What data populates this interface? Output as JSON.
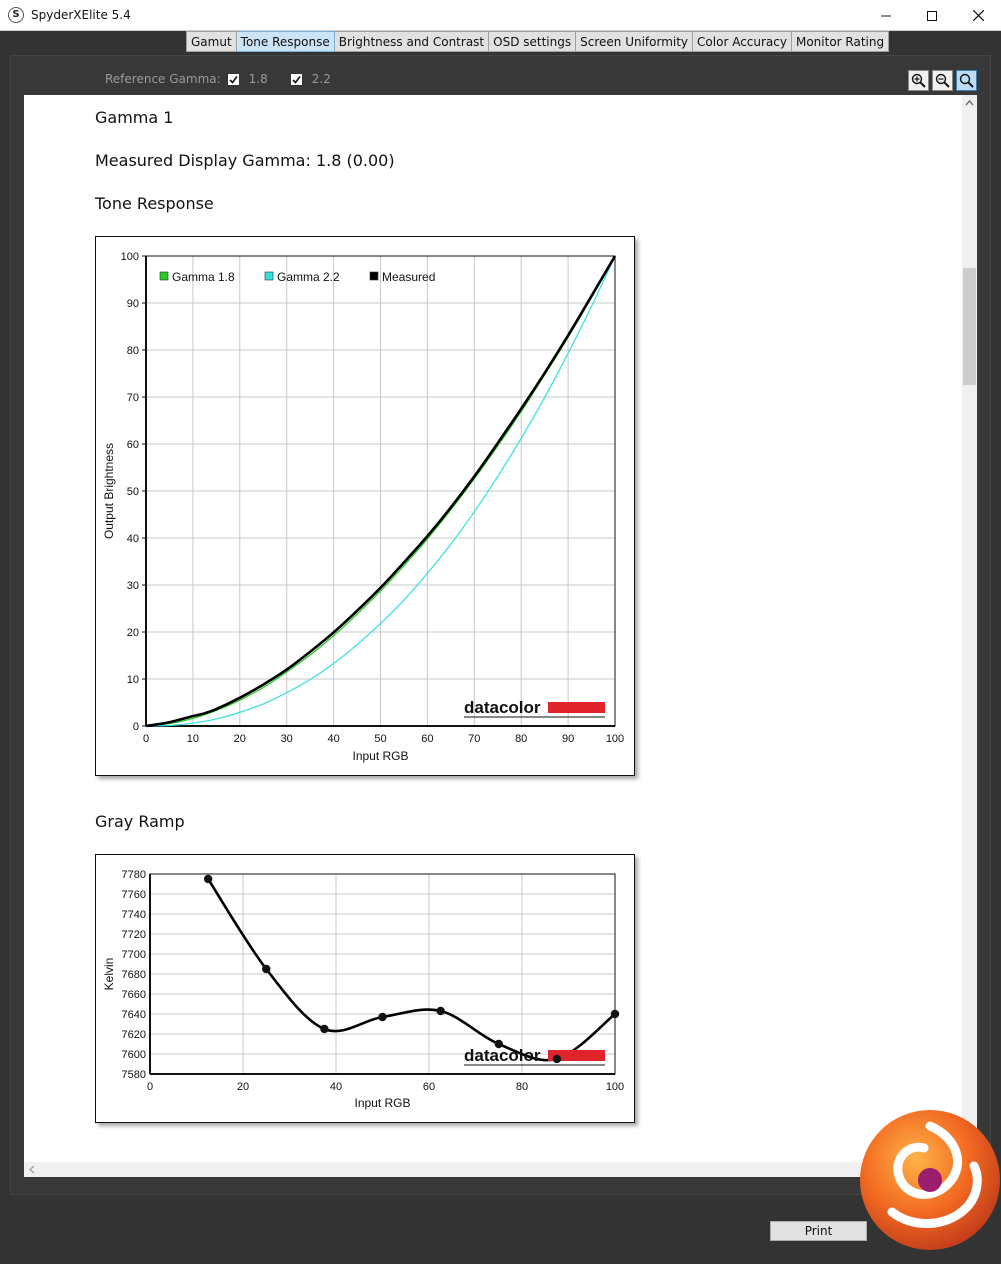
{
  "window": {
    "title": "SpyderXElite 5.4",
    "app_icon_letter": "S"
  },
  "tabs": [
    {
      "label": "Gamut",
      "active": false
    },
    {
      "label": "Tone Response",
      "active": true
    },
    {
      "label": "Brightness and Contrast",
      "active": false
    },
    {
      "label": "OSD settings",
      "active": false
    },
    {
      "label": "Screen Uniformity",
      "active": false
    },
    {
      "label": "Color Accuracy",
      "active": false
    },
    {
      "label": "Monitor Rating",
      "active": false
    }
  ],
  "reference_gamma": {
    "label": "Reference Gamma:",
    "options": [
      {
        "label": "1.8",
        "checked": true
      },
      {
        "label": "2.2",
        "checked": true
      }
    ]
  },
  "zoom": {
    "in_icon": "zoom-in-icon",
    "out_icon": "zoom-out-icon",
    "fit_icon": "zoom-fit-icon"
  },
  "report": {
    "gamma_title": "Gamma 1",
    "measured_gamma": "Measured Display Gamma: 1.8 (0.00)",
    "tone_response_title": "Tone Response",
    "gray_ramp_title": "Gray Ramp"
  },
  "buttons": {
    "print": "Print"
  },
  "brand": {
    "logo_text": "datacolor",
    "logo_color": "#e0242b"
  },
  "chart_data": [
    {
      "type": "line",
      "xlabel": "Input RGB",
      "ylabel": "Output Brightness",
      "xlim": [
        0,
        100
      ],
      "ylim": [
        0,
        100
      ],
      "x_ticks": [
        "0",
        "10",
        "20",
        "30",
        "40",
        "50",
        "60",
        "70",
        "80",
        "90",
        "100"
      ],
      "y_ticks": [
        "0",
        "10",
        "20",
        "30",
        "40",
        "50",
        "60",
        "70",
        "80",
        "90",
        "100"
      ],
      "grid": true,
      "legend": "top-left",
      "series": [
        {
          "name": "Gamma 1.8",
          "color": "#22cc22",
          "x": [
            0,
            5,
            10,
            15,
            20,
            25,
            30,
            35,
            40,
            45,
            50,
            55,
            60,
            65,
            70,
            75,
            80,
            85,
            90,
            95,
            100
          ],
          "y": [
            0,
            0.5,
            1.6,
            3.3,
            5.5,
            8.2,
            11.5,
            15.1,
            19.2,
            23.8,
            28.7,
            34.1,
            39.8,
            46,
            52.6,
            59.6,
            66.9,
            74.7,
            82.7,
            91.2,
            100
          ]
        },
        {
          "name": "Gamma 2.2",
          "color": "#33e0e0",
          "x": [
            0,
            5,
            10,
            15,
            20,
            25,
            30,
            35,
            40,
            45,
            50,
            55,
            60,
            65,
            70,
            75,
            80,
            85,
            90,
            95,
            100
          ],
          "y": [
            0,
            0.1,
            0.6,
            1.5,
            2.9,
            4.7,
            7.1,
            9.9,
            13.3,
            17.3,
            21.8,
            26.8,
            32.5,
            38.7,
            45.6,
            53.1,
            61.2,
            69.9,
            79.3,
            89.3,
            100
          ]
        },
        {
          "name": "Measured",
          "color": "#000000",
          "x": [
            0,
            5,
            10,
            12.5,
            15,
            20,
            25,
            30,
            35,
            40,
            45,
            50,
            55,
            60,
            65,
            70,
            75,
            80,
            85,
            90,
            95,
            100
          ],
          "y": [
            0,
            0.8,
            2.1,
            2.7,
            3.6,
            6,
            8.8,
            12,
            15.8,
            19.9,
            24.5,
            29.4,
            34.8,
            40.4,
            46.5,
            53.1,
            60.2,
            67.5,
            75.1,
            83.1,
            91.5,
            100
          ]
        }
      ]
    },
    {
      "type": "line",
      "xlabel": "Input RGB",
      "ylabel": "Kelvin",
      "xlim": [
        0,
        100
      ],
      "ylim": [
        7580,
        7780
      ],
      "x_ticks": [
        "0",
        "20",
        "40",
        "60",
        "80",
        "100"
      ],
      "y_ticks": [
        "7580",
        "7600",
        "7620",
        "7640",
        "7660",
        "7680",
        "7700",
        "7720",
        "7740",
        "7760",
        "7780"
      ],
      "grid": true,
      "series": [
        {
          "name": "",
          "color": "#000000",
          "x": [
            12.5,
            25,
            37.5,
            50,
            62.5,
            75,
            87.5,
            100
          ],
          "y": [
            7775,
            7685,
            7625,
            7637,
            7643,
            7610,
            7595,
            7640
          ]
        }
      ]
    }
  ]
}
